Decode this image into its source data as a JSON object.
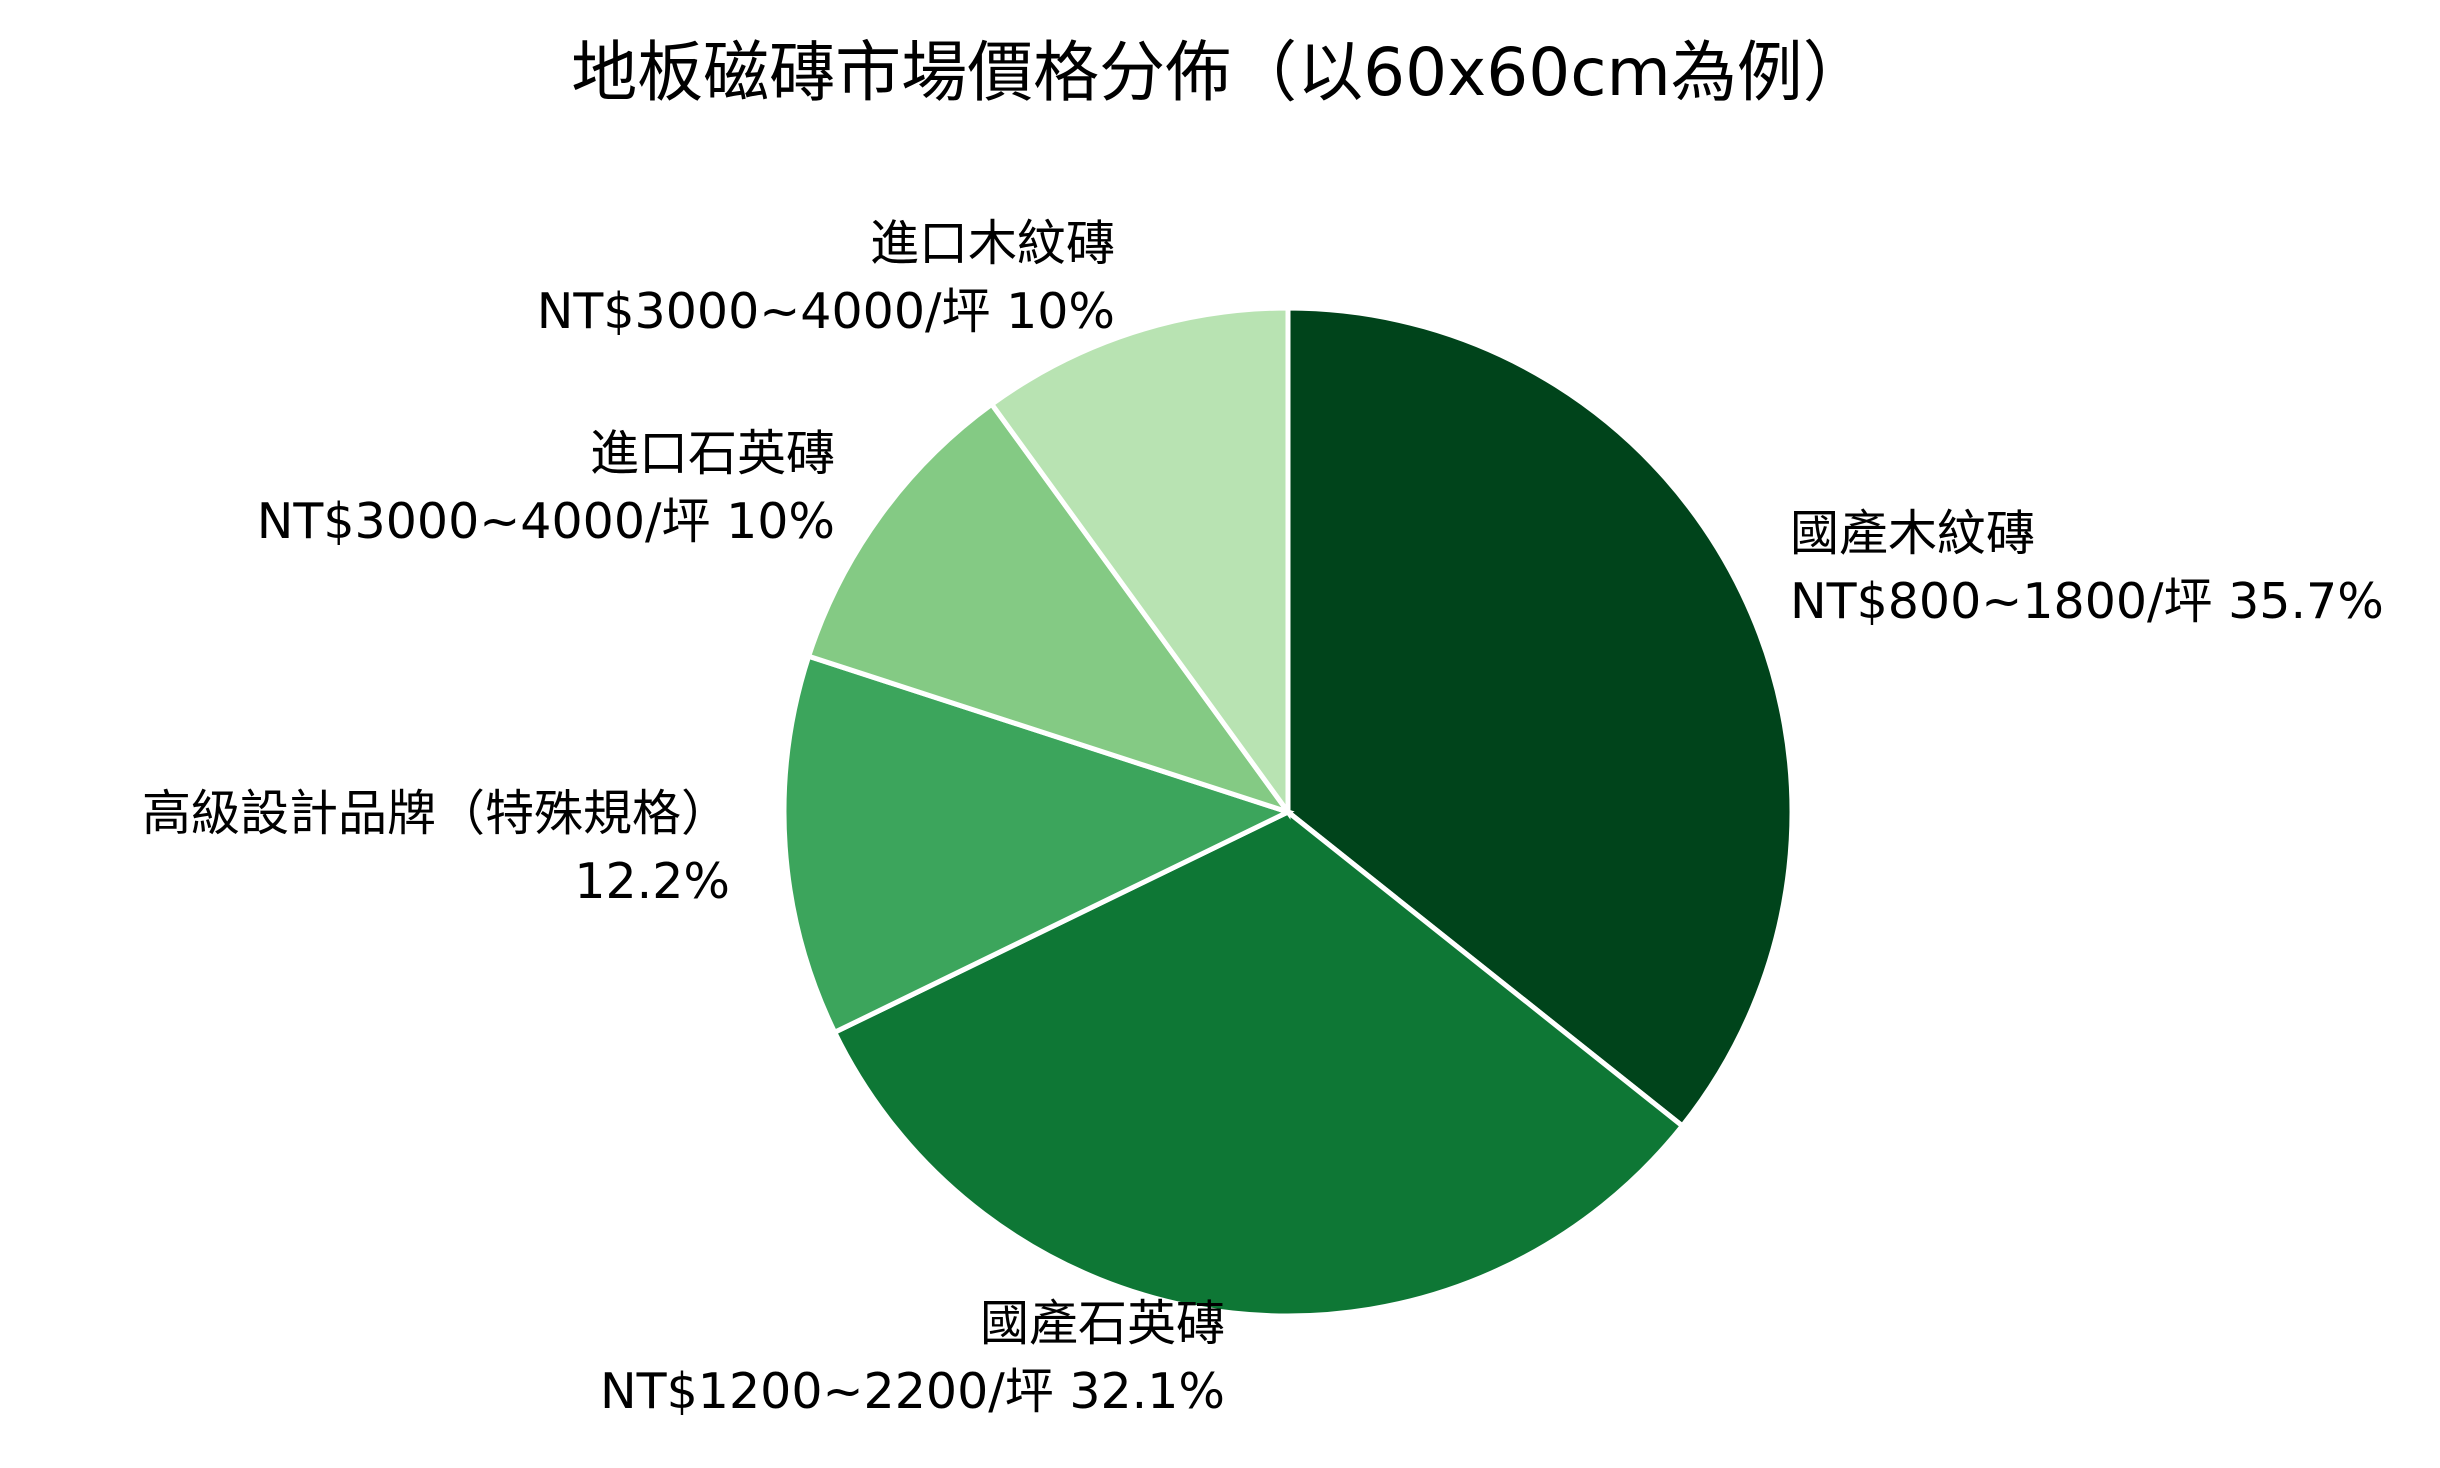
{
  "chart_data": {
    "type": "pie",
    "title": "地板磁磚市場價格分佈（以60x60cm為例）",
    "start_angle_deg": 90,
    "direction": "clockwise",
    "slices": [
      {
        "name": "國產木紋磚",
        "label_lines": [
          "國產木紋磚",
          "NT$800~1800/坪 35.7%"
        ],
        "value": 35.7,
        "color": "#00441b"
      },
      {
        "name": "國產石英磚",
        "label_lines": [
          "國產石英磚",
          "NT$1200~2200/坪 32.1%"
        ],
        "value": 32.1,
        "color": "#0e7735"
      },
      {
        "name": "高級設計品牌（特殊規格）",
        "label_lines": [
          "高級設計品牌（特殊規格）",
          "12.2%"
        ],
        "value": 12.2,
        "color": "#3ca55c"
      },
      {
        "name": "進口石英磚",
        "label_lines": [
          "進口石英磚",
          "NT$3000~4000/坪 10%"
        ],
        "value": 10,
        "color": "#84ca84"
      },
      {
        "name": "進口木紋磚",
        "label_lines": [
          "進口木紋磚",
          "NT$3000~4000/坪 10%"
        ],
        "value": 10,
        "color": "#b8e3b2"
      }
    ]
  }
}
